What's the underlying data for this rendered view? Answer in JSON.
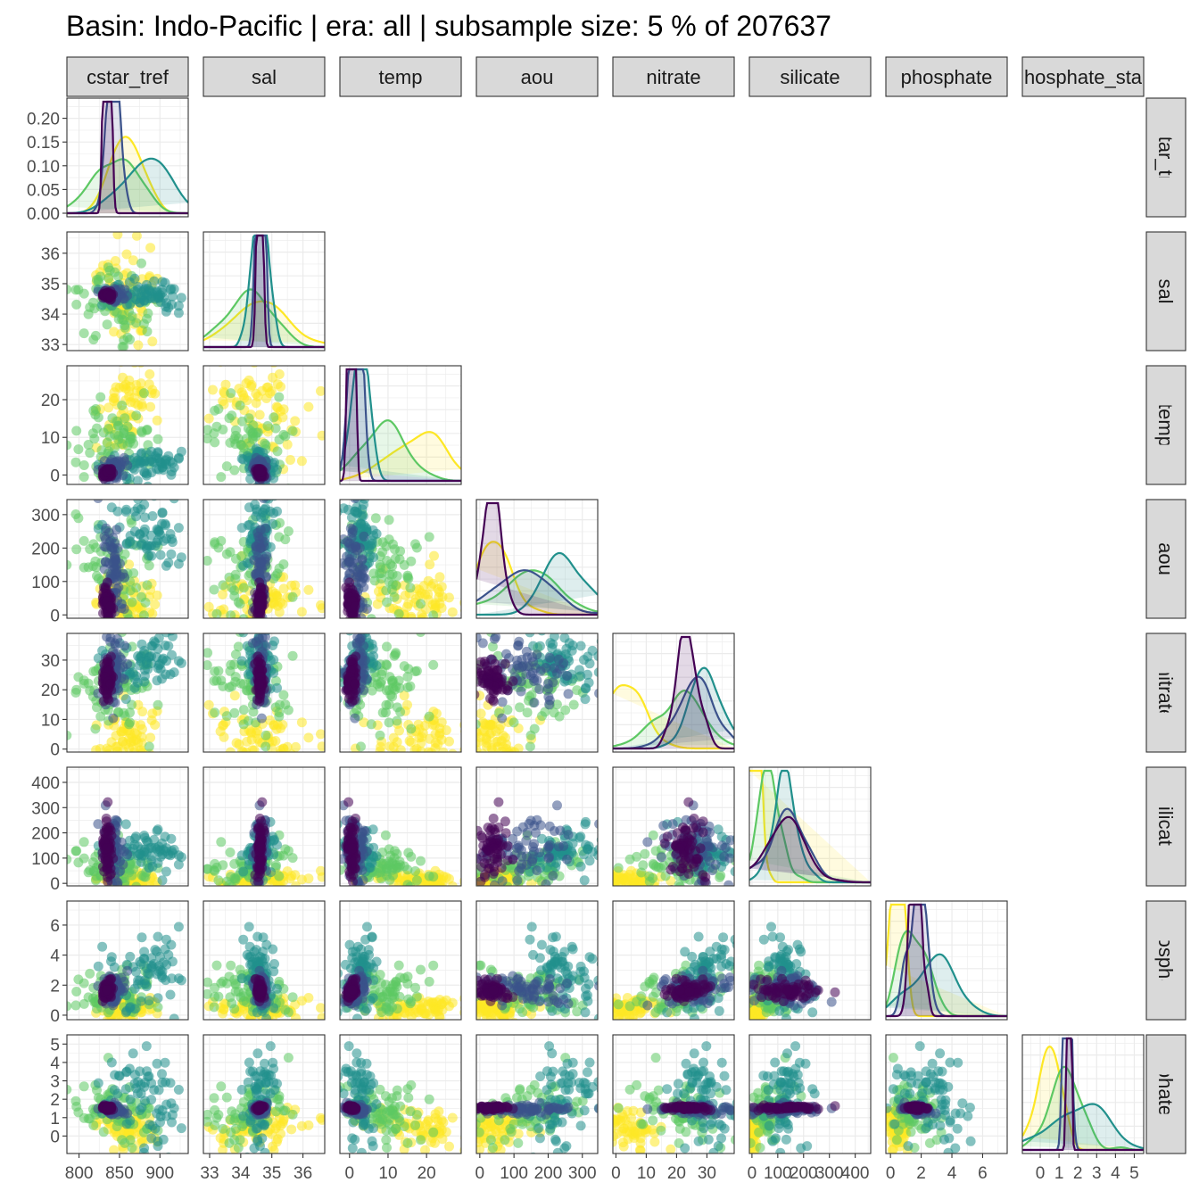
{
  "chart_data": {
    "type": "scatter",
    "title": "Basin: Indo-Pacific | era: all | subsample size: 5 % of 207637",
    "layout": "pairs-matrix-lower-triangle",
    "variables": [
      "cstar_tref",
      "sal",
      "temp",
      "aou",
      "nitrate",
      "silicate",
      "phosphate",
      "phosphate_star"
    ],
    "strip_labels": [
      "cstar_tref",
      "sal",
      "temp",
      "aou",
      "nitrate",
      "silicate",
      "phosphate",
      "hosphate_sta"
    ],
    "row_strip_labels": [
      "cstar_tref",
      "sal",
      "temp",
      "aou",
      "nitrate",
      "silicate",
      "phosphate",
      "hosphate_sta"
    ],
    "axes": {
      "cstar_tref": {
        "range": [
          785,
          935
        ],
        "ticks": [
          800,
          850,
          900
        ],
        "tick_labels": [
          "800",
          "850",
          "900"
        ]
      },
      "sal": {
        "range": [
          32.8,
          36.7
        ],
        "ticks": [
          33,
          34,
          35,
          36
        ],
        "tick_labels": [
          "33",
          "34",
          "35",
          "36"
        ]
      },
      "temp": {
        "range": [
          -2.5,
          29
        ],
        "ticks": [
          0,
          10,
          20
        ],
        "tick_labels": [
          "0",
          "10",
          "20"
        ]
      },
      "aou": {
        "range": [
          -10,
          345
        ],
        "ticks": [
          0,
          100,
          200,
          300
        ],
        "tick_labels": [
          "0",
          "100",
          "200",
          "300"
        ]
      },
      "nitrate": {
        "range": [
          -1,
          39
        ],
        "ticks": [
          0,
          10,
          20,
          30
        ],
        "tick_labels": [
          "0",
          "10",
          "20",
          "30"
        ]
      },
      "silicate": {
        "range": [
          -10,
          460
        ],
        "ticks": [
          0,
          100,
          200,
          300,
          400
        ],
        "tick_labels": [
          "0",
          "100",
          "200",
          "300",
          "400"
        ]
      },
      "phosphate": {
        "range": [
          -0.3,
          7.6
        ],
        "ticks": [
          0,
          2,
          4,
          6
        ],
        "tick_labels": [
          "0",
          "2",
          "4",
          "6"
        ]
      },
      "phosphate_star": {
        "range": [
          -0.95,
          5.5
        ],
        "ticks": [
          0,
          1,
          2,
          3,
          4,
          5
        ],
        "tick_labels": [
          "0",
          "1",
          "2",
          "3",
          "4",
          "5"
        ]
      }
    },
    "density_ylim": [
      0,
      0.24
    ],
    "density_ticks": [
      0,
      0.05,
      0.1,
      0.15,
      0.2
    ],
    "density_tick_labels": [
      "0.00",
      "0.05",
      "0.10",
      "0.15",
      "0.20"
    ],
    "groups": [
      {
        "color": "#FDE725",
        "center": [
          860,
          34.6,
          18,
          40,
          4,
          15,
          0.4,
          0.4
        ],
        "spread": [
          20,
          0.9,
          6.5,
          55,
          6,
          20,
          0.45,
          0.6
        ]
      },
      {
        "color": "#5DC863",
        "center": [
          845,
          34.3,
          9,
          150,
          20,
          60,
          1.7,
          1.3
        ],
        "spread": [
          25,
          0.7,
          5.5,
          80,
          7,
          40,
          0.9,
          0.8
        ]
      },
      {
        "color": "#21908C",
        "center": [
          880,
          34.6,
          3,
          250,
          30,
          130,
          2.8,
          1.9
        ],
        "spread": [
          30,
          0.2,
          2.2,
          70,
          5,
          45,
          1.3,
          1.3
        ]
      },
      {
        "color": "#3B528B",
        "center": [
          842,
          34.65,
          1.5,
          120,
          26,
          150,
          1.8,
          1.5
        ],
        "spread": [
          8,
          0.1,
          1.5,
          80,
          6,
          70,
          0.5,
          0.15
        ]
      },
      {
        "color": "#440154",
        "center": [
          835,
          34.62,
          0.5,
          40,
          23,
          130,
          1.6,
          1.55
        ],
        "spread": [
          3,
          0.06,
          0.6,
          30,
          3,
          80,
          0.3,
          0.06
        ]
      }
    ],
    "grid": true,
    "legend": "none"
  }
}
